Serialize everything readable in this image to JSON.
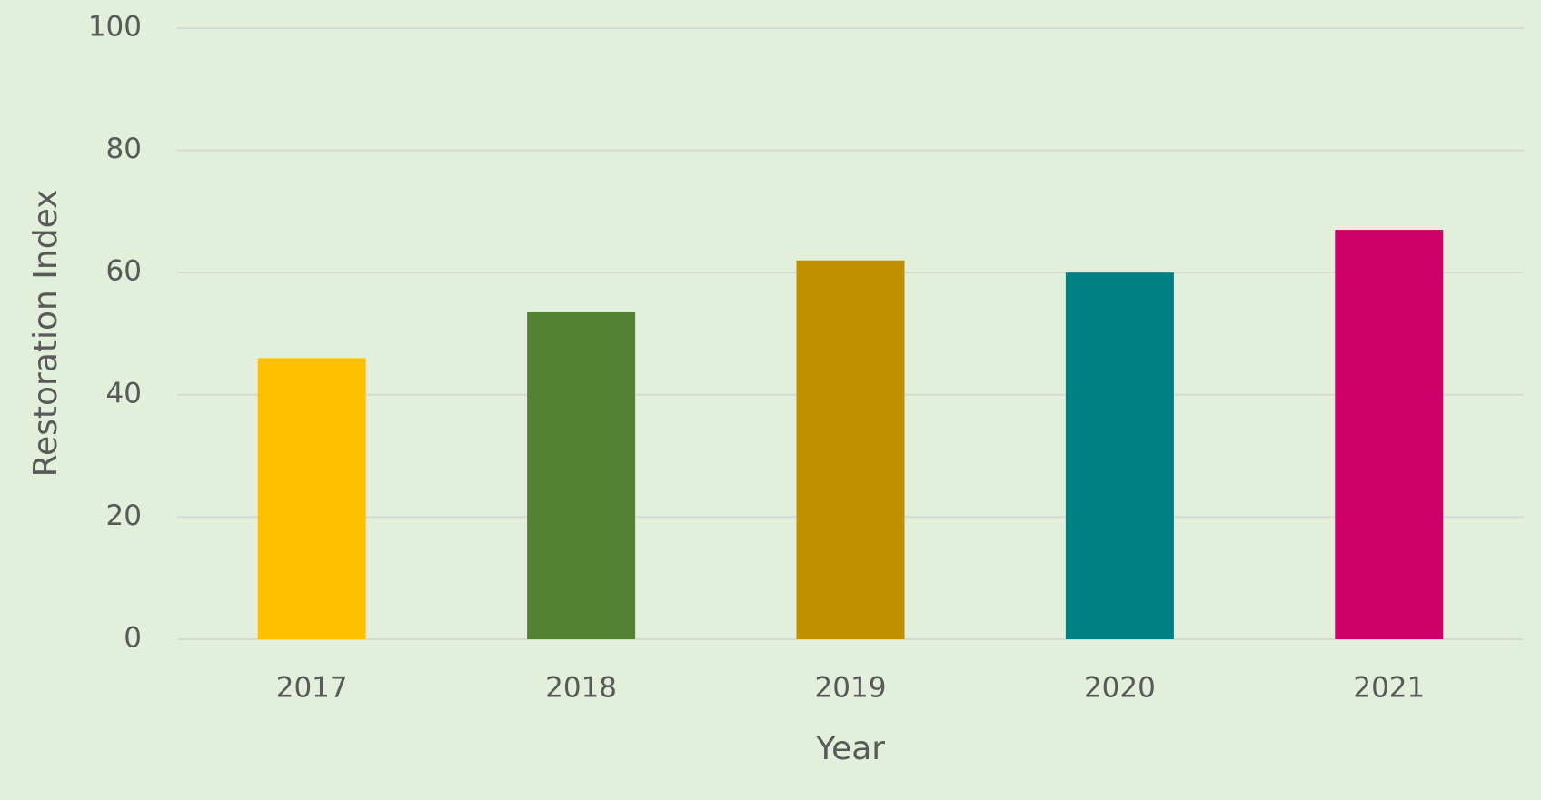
{
  "chart_data": {
    "type": "bar",
    "xlabel": "Year",
    "ylabel": "Restoration Index",
    "categories": [
      "2017",
      "2018",
      "2019",
      "2020",
      "2021"
    ],
    "values": [
      46,
      53.5,
      62,
      60,
      67
    ],
    "colors": [
      "#ffc000",
      "#548235",
      "#bf9000",
      "#008080",
      "#cc0066"
    ],
    "ylim": [
      0,
      100
    ],
    "yticks": [
      0,
      20,
      40,
      60,
      80,
      100
    ],
    "grid": true
  }
}
